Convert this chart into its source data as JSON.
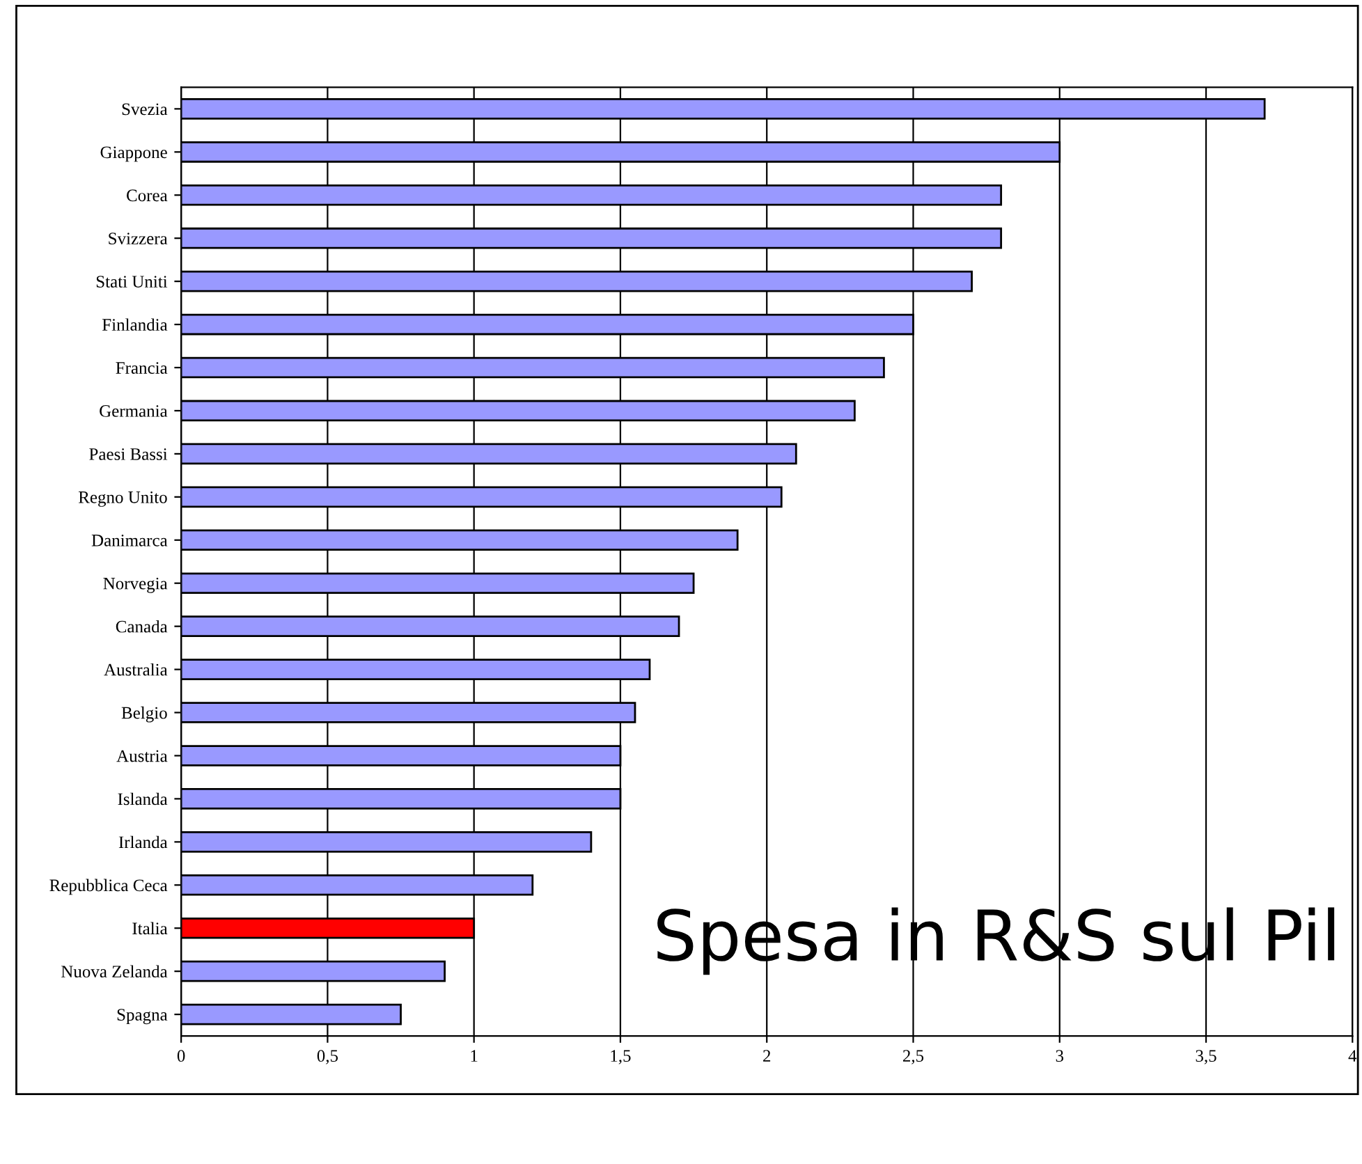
{
  "chart_data": {
    "type": "bar",
    "orientation": "horizontal",
    "categories": [
      "Svezia",
      "Giappone",
      "Corea",
      "Svizzera",
      "Stati Uniti",
      "Finlandia",
      "Francia",
      "Germania",
      "Paesi Bassi",
      "Regno Unito",
      "Danimarca",
      "Norvegia",
      "Canada",
      "Australia",
      "Belgio",
      "Austria",
      "Islanda",
      "Irlanda",
      "Repubblica Ceca",
      "Italia",
      "Nuova Zelanda",
      "Spagna"
    ],
    "values": [
      3.7,
      3.0,
      2.8,
      2.8,
      2.7,
      2.5,
      2.4,
      2.3,
      2.1,
      2.05,
      1.9,
      1.75,
      1.7,
      1.6,
      1.55,
      1.5,
      1.5,
      1.4,
      1.2,
      1.0,
      0.9,
      0.75
    ],
    "colors": [
      "#9999ff",
      "#9999ff",
      "#9999ff",
      "#9999ff",
      "#9999ff",
      "#9999ff",
      "#9999ff",
      "#9999ff",
      "#9999ff",
      "#9999ff",
      "#9999ff",
      "#9999ff",
      "#9999ff",
      "#9999ff",
      "#9999ff",
      "#9999ff",
      "#9999ff",
      "#9999ff",
      "#9999ff",
      "#ff0000",
      "#9999ff",
      "#9999ff"
    ],
    "xlim": [
      0,
      4
    ],
    "xticks": [
      0,
      {
        "value": 0.5,
        "label": "0,5"
      },
      1,
      {
        "value": 1.5,
        "label": "1,5"
      },
      2,
      {
        "value": 2.5,
        "label": "2,5"
      },
      3,
      {
        "value": 3.5,
        "label": "3,5"
      },
      4
    ],
    "grid": "x",
    "annotations": [
      "Spesa in R&S sul Pil"
    ]
  }
}
